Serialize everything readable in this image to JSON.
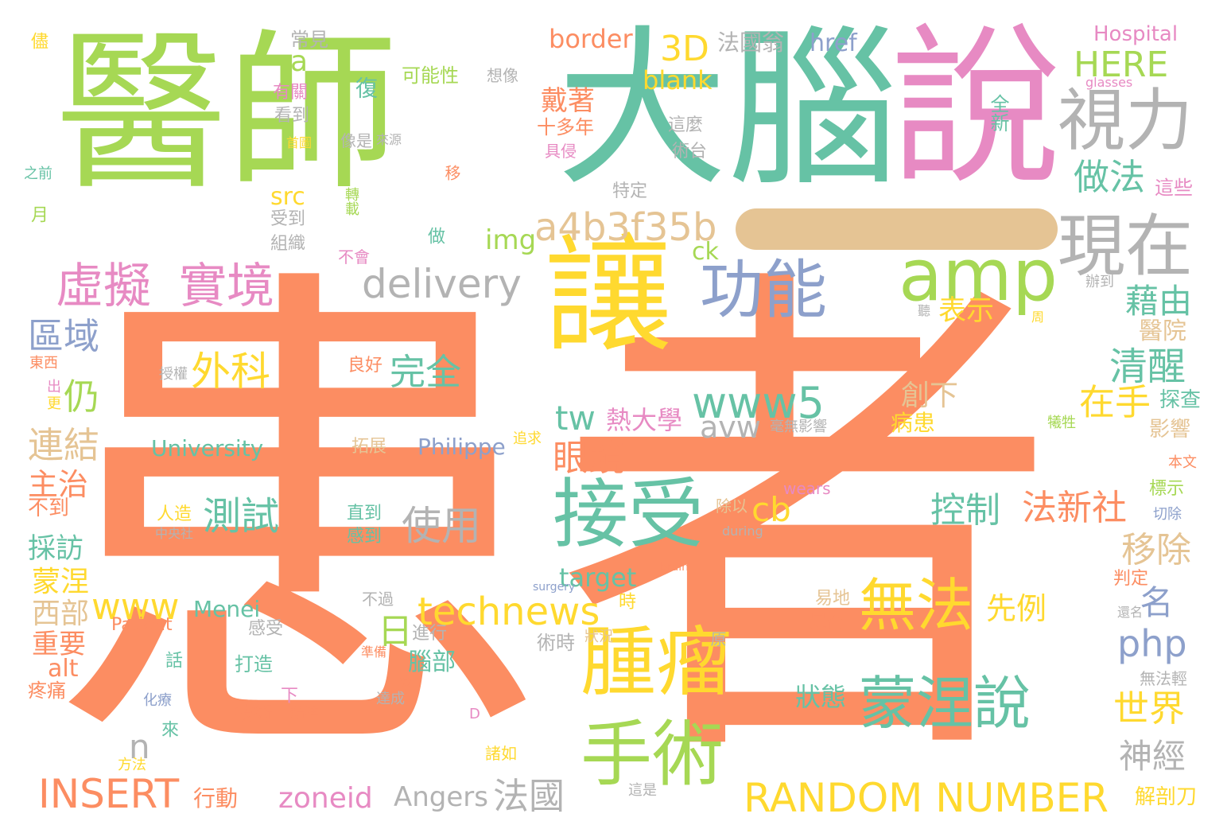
{
  "colors": {
    "orange": "#fc8d62",
    "green": "#a6d854",
    "teal": "#66c2a5",
    "pink": "#e78ac3",
    "yellow": "#ffd92f",
    "tan": "#e5c494",
    "gray": "#b3b3b3",
    "blue": "#8da0cb"
  },
  "words": [
    {
      "text": "患者",
      "color": "orange"
    },
    {
      "text": "醫師",
      "color": "green"
    },
    {
      "text": "大腦",
      "color": "teal"
    },
    {
      "text": "說",
      "color": "pink"
    },
    {
      "text": "讓",
      "color": "yellow"
    },
    {
      "text": "—",
      "color": "tan"
    },
    {
      "text": "視力",
      "color": "gray"
    },
    {
      "text": "現在",
      "color": "gray"
    },
    {
      "text": "amp",
      "color": "green"
    },
    {
      "text": "功能",
      "color": "blue"
    },
    {
      "text": "接受",
      "color": "teal"
    },
    {
      "text": "腫瘤",
      "color": "yellow"
    },
    {
      "text": "手術",
      "color": "green"
    },
    {
      "text": "蒙涅說",
      "color": "teal"
    },
    {
      "text": "無法",
      "color": "yellow"
    },
    {
      "text": "虛擬",
      "color": "pink"
    },
    {
      "text": "實境",
      "color": "pink"
    },
    {
      "text": "delivery",
      "color": "gray"
    },
    {
      "text": "a4b3f35b",
      "color": "tan"
    },
    {
      "text": "3D",
      "color": "yellow"
    },
    {
      "text": "blank",
      "color": "yellow"
    },
    {
      "text": "border",
      "color": "orange"
    },
    {
      "text": "HERE",
      "color": "green"
    },
    {
      "text": "Hospital",
      "color": "pink"
    },
    {
      "text": "glasses",
      "color": "pink"
    },
    {
      "text": "全新",
      "color": "teal"
    },
    {
      "text": "做法",
      "color": "teal"
    },
    {
      "text": "這些",
      "color": "pink"
    },
    {
      "text": "藉由",
      "color": "teal"
    },
    {
      "text": "醫院",
      "color": "tan"
    },
    {
      "text": "清醒",
      "color": "teal"
    },
    {
      "text": "在手",
      "color": "yellow"
    },
    {
      "text": "探查",
      "color": "teal"
    },
    {
      "text": "影響",
      "color": "tan"
    },
    {
      "text": "創下",
      "color": "tan"
    },
    {
      "text": "病患",
      "color": "yellow"
    },
    {
      "text": "表示",
      "color": "yellow"
    },
    {
      "text": "www5",
      "color": "teal"
    },
    {
      "text": "avw",
      "color": "gray"
    },
    {
      "text": "tw",
      "color": "teal"
    },
    {
      "text": "熱大學",
      "color": "pink"
    },
    {
      "text": "眼鏡",
      "color": "orange"
    },
    {
      "text": "完全",
      "color": "teal"
    },
    {
      "text": "外科",
      "color": "yellow"
    },
    {
      "text": "仍",
      "color": "green"
    },
    {
      "text": "區域",
      "color": "blue"
    },
    {
      "text": "連結",
      "color": "tan"
    },
    {
      "text": "主治",
      "color": "orange"
    },
    {
      "text": "不到",
      "color": "orange"
    },
    {
      "text": "採訪",
      "color": "teal"
    },
    {
      "text": "蒙涅",
      "color": "yellow"
    },
    {
      "text": "西部",
      "color": "tan"
    },
    {
      "text": "重要",
      "color": "orange"
    },
    {
      "text": "alt",
      "color": "orange"
    },
    {
      "text": "疼痛",
      "color": "orange"
    },
    {
      "text": "INSERT",
      "color": "orange"
    },
    {
      "text": "行動",
      "color": "orange"
    },
    {
      "text": "zoneid",
      "color": "pink"
    },
    {
      "text": "Angers",
      "color": "gray"
    },
    {
      "text": "法國",
      "color": "gray"
    },
    {
      "text": "RANDOM NUMBER",
      "color": "yellow"
    },
    {
      "text": "神經",
      "color": "gray"
    },
    {
      "text": "世界",
      "color": "yellow"
    },
    {
      "text": "解剖刀",
      "color": "yellow"
    },
    {
      "text": "php",
      "color": "blue"
    },
    {
      "text": "名",
      "color": "blue"
    },
    {
      "text": "先例",
      "color": "yellow"
    },
    {
      "text": "狀態",
      "color": "teal"
    },
    {
      "text": "technews",
      "color": "yellow"
    },
    {
      "text": "www",
      "color": "yellow"
    },
    {
      "text": "target",
      "color": "teal"
    },
    {
      "text": "Menei",
      "color": "teal"
    },
    {
      "text": "Patient",
      "color": "orange"
    },
    {
      "text": "使用",
      "color": "gray"
    },
    {
      "text": "測試",
      "color": "teal"
    },
    {
      "text": "控制",
      "color": "teal"
    },
    {
      "text": "法新社",
      "color": "orange"
    },
    {
      "text": "移除",
      "color": "tan"
    },
    {
      "text": "cb",
      "color": "yellow"
    },
    {
      "text": "University",
      "color": "teal"
    },
    {
      "text": "Philippe",
      "color": "blue"
    },
    {
      "text": "日",
      "color": "green"
    },
    {
      "text": "腦部",
      "color": "teal"
    },
    {
      "text": "n",
      "color": "gray"
    },
    {
      "text": "a",
      "color": "green"
    },
    {
      "text": "src",
      "color": "yellow"
    },
    {
      "text": "img",
      "color": "green"
    },
    {
      "text": "ck",
      "color": "green"
    },
    {
      "text": "戴著",
      "color": "orange"
    },
    {
      "text": "十多年",
      "color": "orange"
    },
    {
      "text": "法國翁",
      "color": "gray"
    },
    {
      "text": "href",
      "color": "blue"
    },
    {
      "text": "常見",
      "color": "gray"
    },
    {
      "text": "可能性",
      "color": "green"
    },
    {
      "text": "想像",
      "color": "gray"
    },
    {
      "text": "有關",
      "color": "pink"
    },
    {
      "text": "看到",
      "color": "gray"
    },
    {
      "text": "復",
      "color": "teal"
    },
    {
      "text": "儘",
      "color": "yellow"
    },
    {
      "text": "之前",
      "color": "teal"
    },
    {
      "text": "月",
      "color": "green"
    },
    {
      "text": "首圖",
      "color": "yellow"
    },
    {
      "text": "像是",
      "color": "gray"
    },
    {
      "text": "來源",
      "color": "gray"
    },
    {
      "text": "具侵",
      "color": "pink"
    },
    {
      "text": "移",
      "color": "orange"
    },
    {
      "text": "這麼",
      "color": "gray"
    },
    {
      "text": "術台",
      "color": "gray"
    },
    {
      "text": "特定",
      "color": "gray"
    },
    {
      "text": "受到",
      "color": "gray"
    },
    {
      "text": "組織",
      "color": "gray"
    },
    {
      "text": "轉載",
      "color": "green"
    },
    {
      "text": "做",
      "color": "teal"
    },
    {
      "text": "不會",
      "color": "pink"
    },
    {
      "text": "辦到",
      "color": "gray"
    },
    {
      "text": "聽",
      "color": "gray"
    },
    {
      "text": "周",
      "color": "yellow"
    },
    {
      "text": "東西",
      "color": "orange"
    },
    {
      "text": "出",
      "color": "pink"
    },
    {
      "text": "更",
      "color": "yellow"
    },
    {
      "text": "授權",
      "color": "gray"
    },
    {
      "text": "良好",
      "color": "orange"
    },
    {
      "text": "拓展",
      "color": "tan"
    },
    {
      "text": "追求",
      "color": "yellow"
    },
    {
      "text": "毫無影響",
      "color": "gray"
    },
    {
      "text": "犧牲",
      "color": "green"
    },
    {
      "text": "本文",
      "color": "orange"
    },
    {
      "text": "wears",
      "color": "pink"
    },
    {
      "text": "標示",
      "color": "green"
    },
    {
      "text": "切除",
      "color": "blue"
    },
    {
      "text": "人造",
      "color": "yellow"
    },
    {
      "text": "中央社",
      "color": "gray"
    },
    {
      "text": "直到",
      "color": "teal"
    },
    {
      "text": "感到",
      "color": "teal"
    },
    {
      "text": "除以",
      "color": "tan"
    },
    {
      "text": "during",
      "color": "gray"
    },
    {
      "text": "brain",
      "color": "orange"
    },
    {
      "text": "surgery",
      "color": "blue"
    },
    {
      "text": "判定",
      "color": "orange"
    },
    {
      "text": "還名",
      "color": "gray"
    },
    {
      "text": "易地",
      "color": "tan"
    },
    {
      "text": "是否",
      "color": "orange"
    },
    {
      "text": "不過",
      "color": "gray"
    },
    {
      "text": "時",
      "color": "yellow"
    },
    {
      "text": "進行",
      "color": "gray"
    },
    {
      "text": "感受",
      "color": "gray"
    },
    {
      "text": "狀況",
      "color": "tan"
    },
    {
      "text": "術時",
      "color": "gray"
    },
    {
      "text": "準備",
      "color": "orange"
    },
    {
      "text": "原",
      "color": "gray"
    },
    {
      "text": "打造",
      "color": "teal"
    },
    {
      "text": "話",
      "color": "teal"
    },
    {
      "text": "後",
      "color": "orange"
    },
    {
      "text": "達成",
      "color": "gray"
    },
    {
      "text": "化療",
      "color": "blue"
    },
    {
      "text": "技術",
      "color": "orange"
    },
    {
      "text": "精準",
      "color": "orange"
    },
    {
      "text": "下",
      "color": "pink"
    },
    {
      "text": "來",
      "color": "teal"
    },
    {
      "text": "D",
      "color": "pink"
    },
    {
      "text": "諸如",
      "color": "yellow"
    },
    {
      "text": "方法",
      "color": "yellow"
    },
    {
      "text": "這是",
      "color": "gray"
    },
    {
      "text": "無法輕",
      "color": "gray"
    }
  ]
}
